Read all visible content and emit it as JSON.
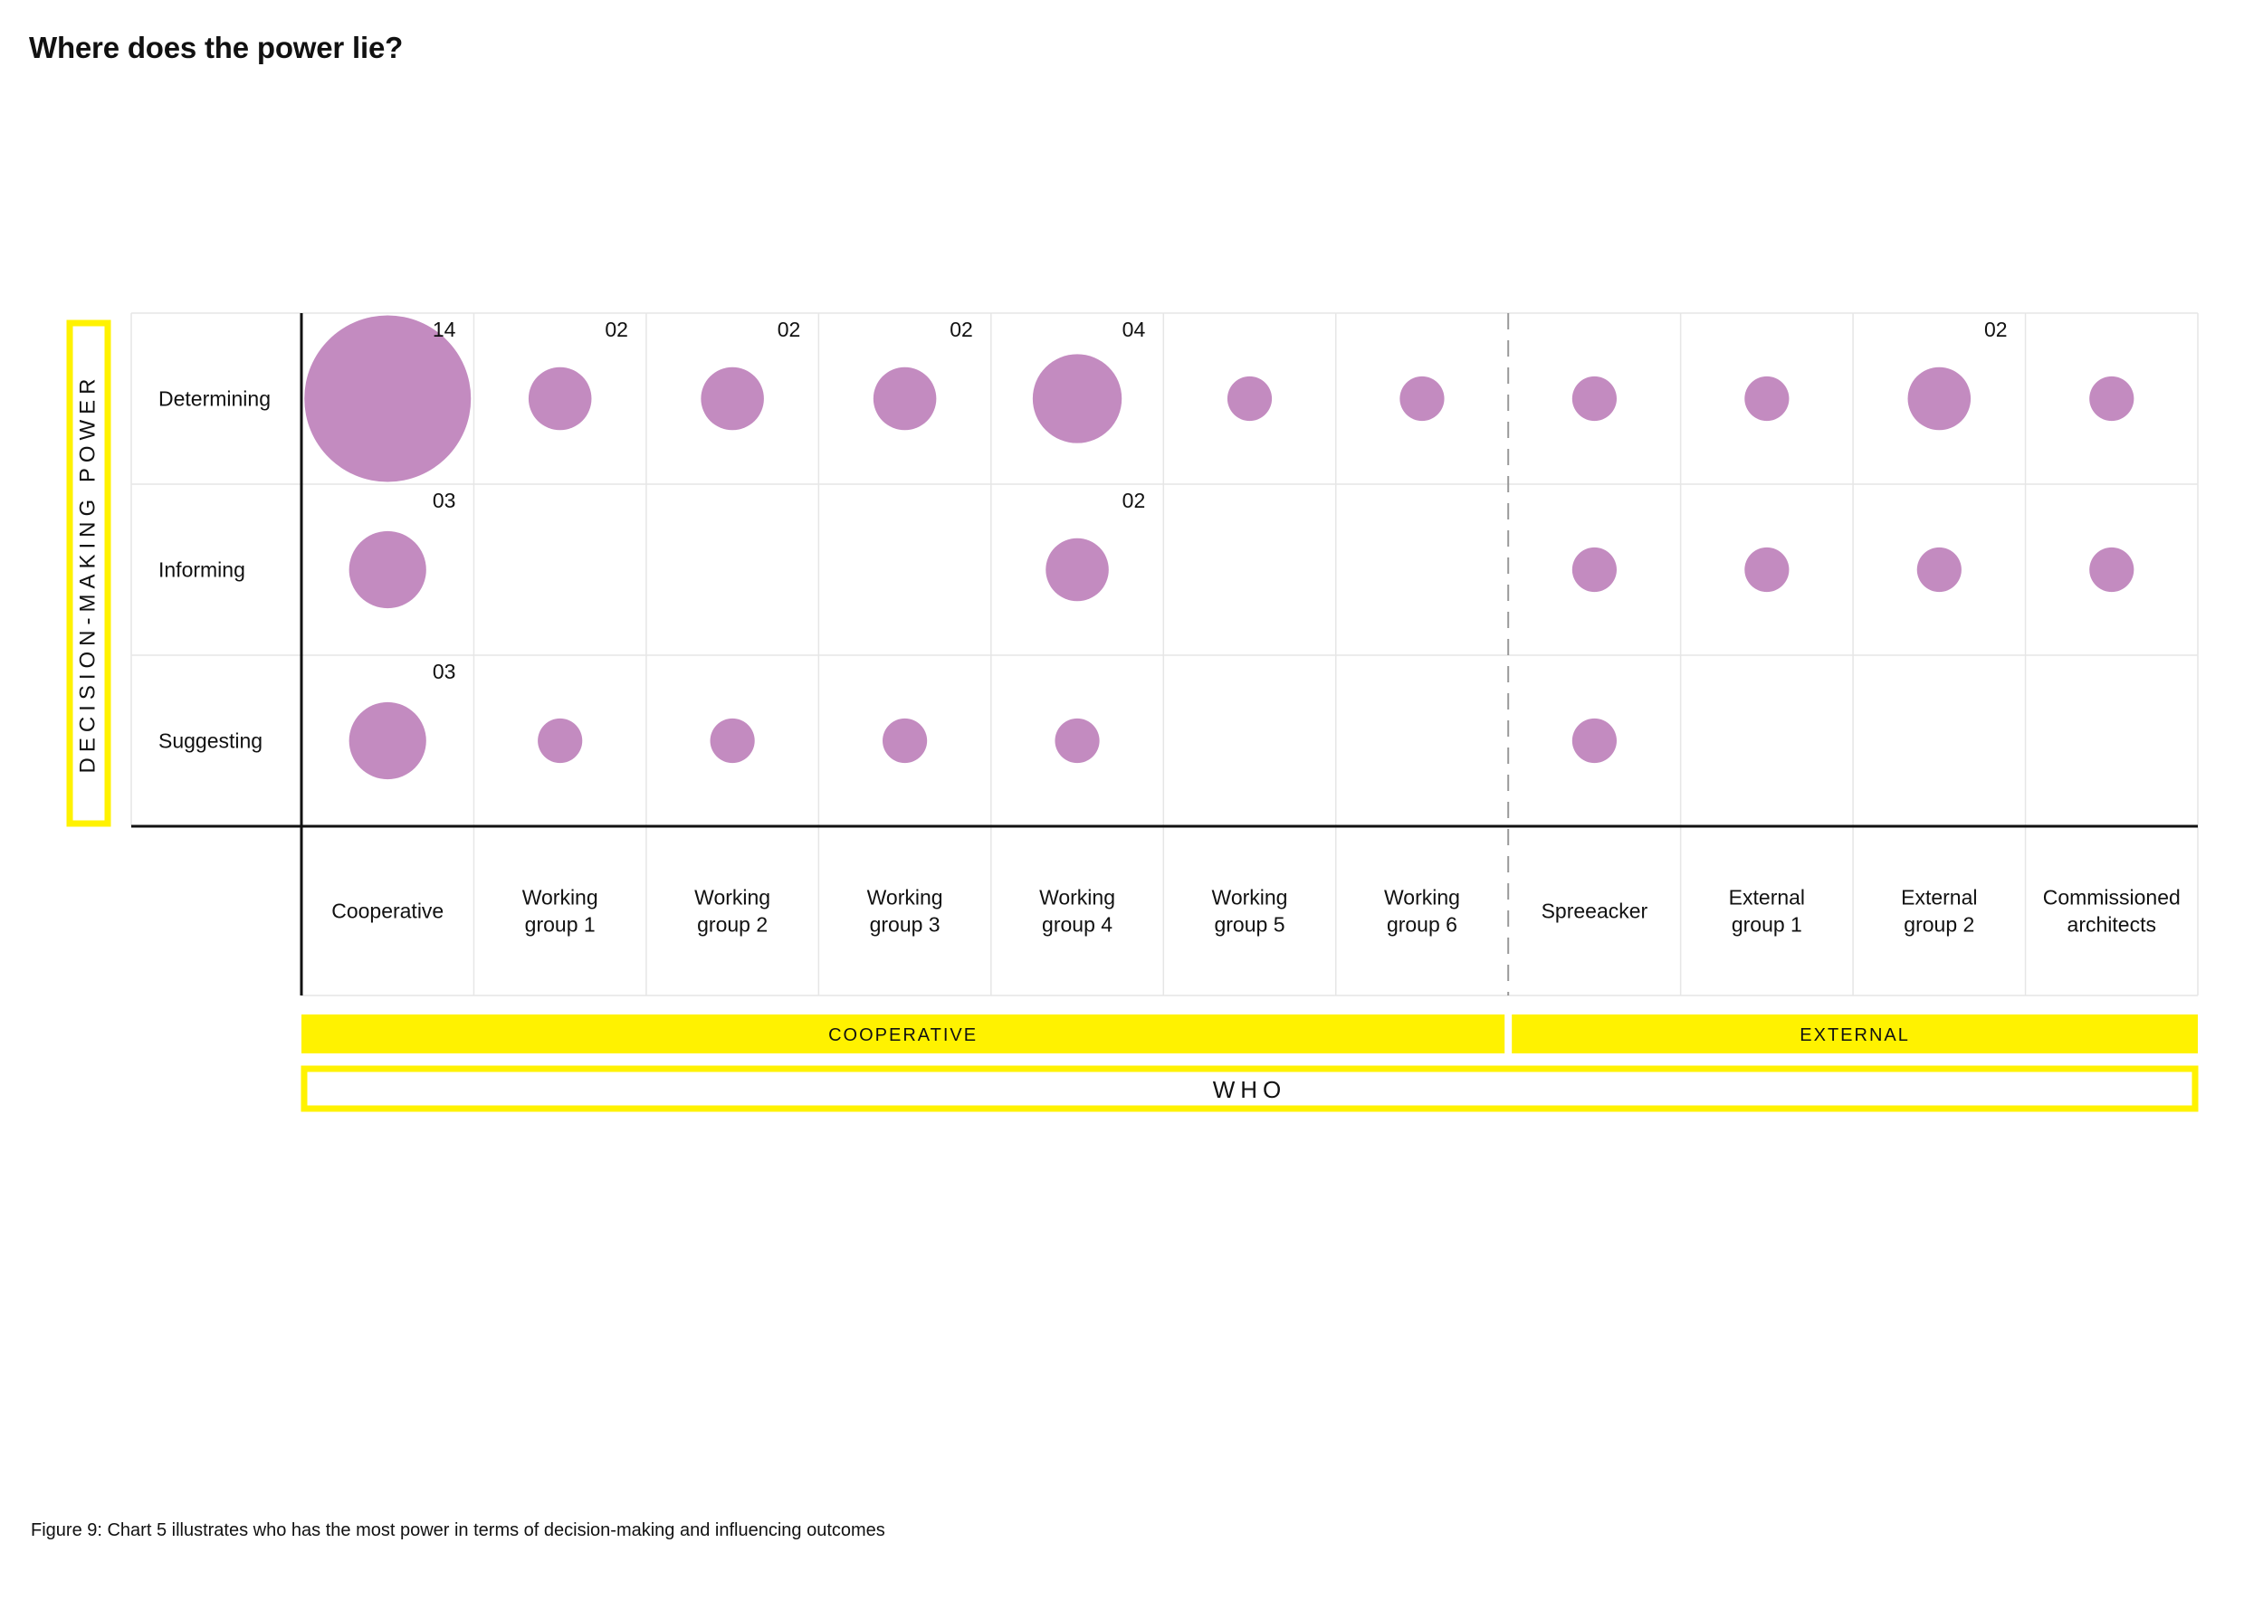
{
  "title": "Where does the power lie?",
  "caption": "Figure 9: Chart 5 illustrates who has the most power in terms of decision-making and influencing outcomes",
  "colors": {
    "bubble": "#c38bc0",
    "highlight": "#fff200",
    "grid": "#e6e6e6",
    "axis": "#111111",
    "divider": "#999999"
  },
  "chart_data": {
    "type": "bubble-matrix",
    "title": "Where does the power lie?",
    "ylabel": "DECISION-MAKING POWER",
    "xlabel": "WHO",
    "rows": [
      "Determining",
      "Informing",
      "Suggesting"
    ],
    "columns": [
      {
        "lines": [
          "Cooperative"
        ]
      },
      {
        "lines": [
          "Working",
          "group 1"
        ]
      },
      {
        "lines": [
          "Working",
          "group 2"
        ]
      },
      {
        "lines": [
          "Working",
          "group 3"
        ]
      },
      {
        "lines": [
          "Working",
          "group 4"
        ]
      },
      {
        "lines": [
          "Working",
          "group 5"
        ]
      },
      {
        "lines": [
          "Working",
          "group 6"
        ]
      },
      {
        "lines": [
          "Spreeacker"
        ]
      },
      {
        "lines": [
          "External",
          "group 1"
        ]
      },
      {
        "lines": [
          "External",
          "group 2"
        ]
      },
      {
        "lines": [
          "Commissioned",
          "architects"
        ]
      }
    ],
    "groups": [
      {
        "label": "COOPERATIVE",
        "from": 0,
        "to": 6
      },
      {
        "label": "EXTERNAL",
        "from": 7,
        "to": 10
      }
    ],
    "values": [
      [
        14,
        2,
        2,
        2,
        4,
        1,
        1,
        1,
        1,
        2,
        1
      ],
      [
        3,
        0,
        0,
        0,
        2,
        0,
        0,
        1,
        1,
        1,
        1
      ],
      [
        3,
        1,
        1,
        1,
        1,
        0,
        0,
        1,
        0,
        0,
        0
      ]
    ],
    "count_labels": [
      [
        "14",
        "02",
        "02",
        "02",
        "04",
        "",
        "",
        "",
        "",
        "02",
        ""
      ],
      [
        "03",
        "",
        "",
        "",
        "02",
        "",
        "",
        "",
        "",
        "",
        ""
      ],
      [
        "03",
        "",
        "",
        "",
        "",
        "",
        "",
        "",
        "",
        "",
        ""
      ]
    ]
  }
}
